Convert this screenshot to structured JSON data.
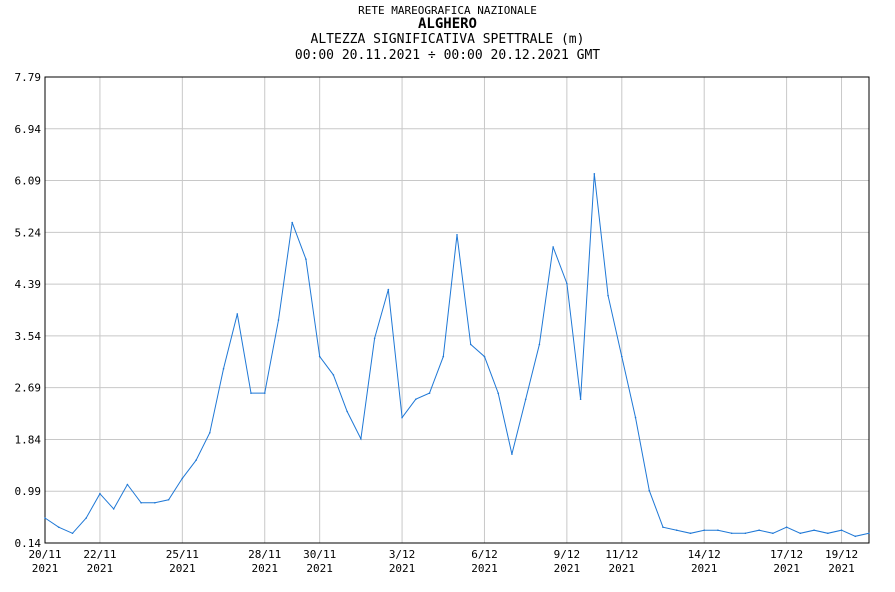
{
  "header": {
    "network": "RETE MAREOGRAFICA NAZIONALE",
    "station": "ALGHERO",
    "variable": "ALTEZZA SIGNIFICATIVA SPETTRALE (m)",
    "period": "00:00 20.11.2021 ÷ 00:00 20.12.2021 GMT"
  },
  "colors": {
    "line": "#1f78d6",
    "grid": "#c8c8c8",
    "axis": "#000000",
    "background": "#ffffff"
  },
  "chart_data": {
    "type": "line",
    "title": "ALTEZZA SIGNIFICATIVA SPETTRALE (m)",
    "xlabel": "",
    "ylabel": "",
    "ylim": [
      0.14,
      7.79
    ],
    "xlim": [
      "2021-11-20",
      "2021-12-20"
    ],
    "grid": true,
    "y_ticks": [
      "0.14",
      "0.99",
      "1.84",
      "2.69",
      "3.54",
      "4.39",
      "5.24",
      "6.09",
      "6.94",
      "7.79"
    ],
    "x_ticks": [
      {
        "date": "2021-11-20",
        "day": "20/11",
        "year": "2021"
      },
      {
        "date": "2021-11-22",
        "day": "22/11",
        "year": "2021"
      },
      {
        "date": "2021-11-25",
        "day": "25/11",
        "year": "2021"
      },
      {
        "date": "2021-11-28",
        "day": "28/11",
        "year": "2021"
      },
      {
        "date": "2021-11-30",
        "day": "30/11",
        "year": "2021"
      },
      {
        "date": "2021-12-03",
        "day": "3/12",
        "year": "2021"
      },
      {
        "date": "2021-12-06",
        "day": "6/12",
        "year": "2021"
      },
      {
        "date": "2021-12-09",
        "day": "9/12",
        "year": "2021"
      },
      {
        "date": "2021-12-11",
        "day": "11/12",
        "year": "2021"
      },
      {
        "date": "2021-12-14",
        "day": "14/12",
        "year": "2021"
      },
      {
        "date": "2021-12-17",
        "day": "17/12",
        "year": "2021"
      },
      {
        "date": "2021-12-19",
        "day": "19/12",
        "year": "2021"
      }
    ],
    "series": [
      {
        "x": [
          "2021-11-20 00:00",
          "2021-11-20 12:00",
          "2021-11-21 00:00",
          "2021-11-21 12:00",
          "2021-11-22 00:00",
          "2021-11-22 12:00",
          "2021-11-23 00:00",
          "2021-11-23 12:00",
          "2021-11-24 00:00",
          "2021-11-24 12:00",
          "2021-11-25 00:00",
          "2021-11-25 12:00",
          "2021-11-26 00:00",
          "2021-11-26 12:00",
          "2021-11-27 00:00",
          "2021-11-27 12:00",
          "2021-11-28 00:00",
          "2021-11-28 12:00",
          "2021-11-29 00:00",
          "2021-11-29 12:00",
          "2021-11-30 00:00",
          "2021-11-30 12:00",
          "2021-12-01 00:00",
          "2021-12-01 12:00",
          "2021-12-02 00:00",
          "2021-12-02 12:00",
          "2021-12-03 00:00",
          "2021-12-03 12:00",
          "2021-12-04 00:00",
          "2021-12-04 12:00",
          "2021-12-05 00:00",
          "2021-12-05 12:00",
          "2021-12-06 00:00",
          "2021-12-06 12:00",
          "2021-12-07 00:00",
          "2021-12-07 12:00",
          "2021-12-08 00:00",
          "2021-12-08 12:00",
          "2021-12-09 00:00",
          "2021-12-09 12:00",
          "2021-12-10 00:00",
          "2021-12-10 12:00",
          "2021-12-11 00:00",
          "2021-12-11 12:00",
          "2021-12-12 00:00",
          "2021-12-12 12:00",
          "2021-12-13 00:00",
          "2021-12-13 12:00",
          "2021-12-14 00:00",
          "2021-12-14 12:00",
          "2021-12-15 00:00",
          "2021-12-15 12:00",
          "2021-12-16 00:00",
          "2021-12-16 12:00",
          "2021-12-17 00:00",
          "2021-12-17 12:00",
          "2021-12-18 00:00",
          "2021-12-18 12:00",
          "2021-12-19 00:00",
          "2021-12-19 12:00",
          "2021-12-20 00:00"
        ],
        "y": [
          0.55,
          0.4,
          0.3,
          0.55,
          0.95,
          0.7,
          1.1,
          0.8,
          0.8,
          0.85,
          1.2,
          1.5,
          1.95,
          3.0,
          3.9,
          2.6,
          2.6,
          3.8,
          5.4,
          4.8,
          3.2,
          2.9,
          2.3,
          1.85,
          3.5,
          4.3,
          2.2,
          2.5,
          2.6,
          3.2,
          5.2,
          3.4,
          3.2,
          2.6,
          1.6,
          2.5,
          3.4,
          5.0,
          4.4,
          2.5,
          6.2,
          4.2,
          3.2,
          2.2,
          1.0,
          0.4,
          0.35,
          0.3,
          0.35,
          0.35,
          0.3,
          0.3,
          0.35,
          0.3,
          0.4,
          0.3,
          0.35,
          0.3,
          0.35,
          0.25,
          0.3
        ]
      }
    ]
  }
}
